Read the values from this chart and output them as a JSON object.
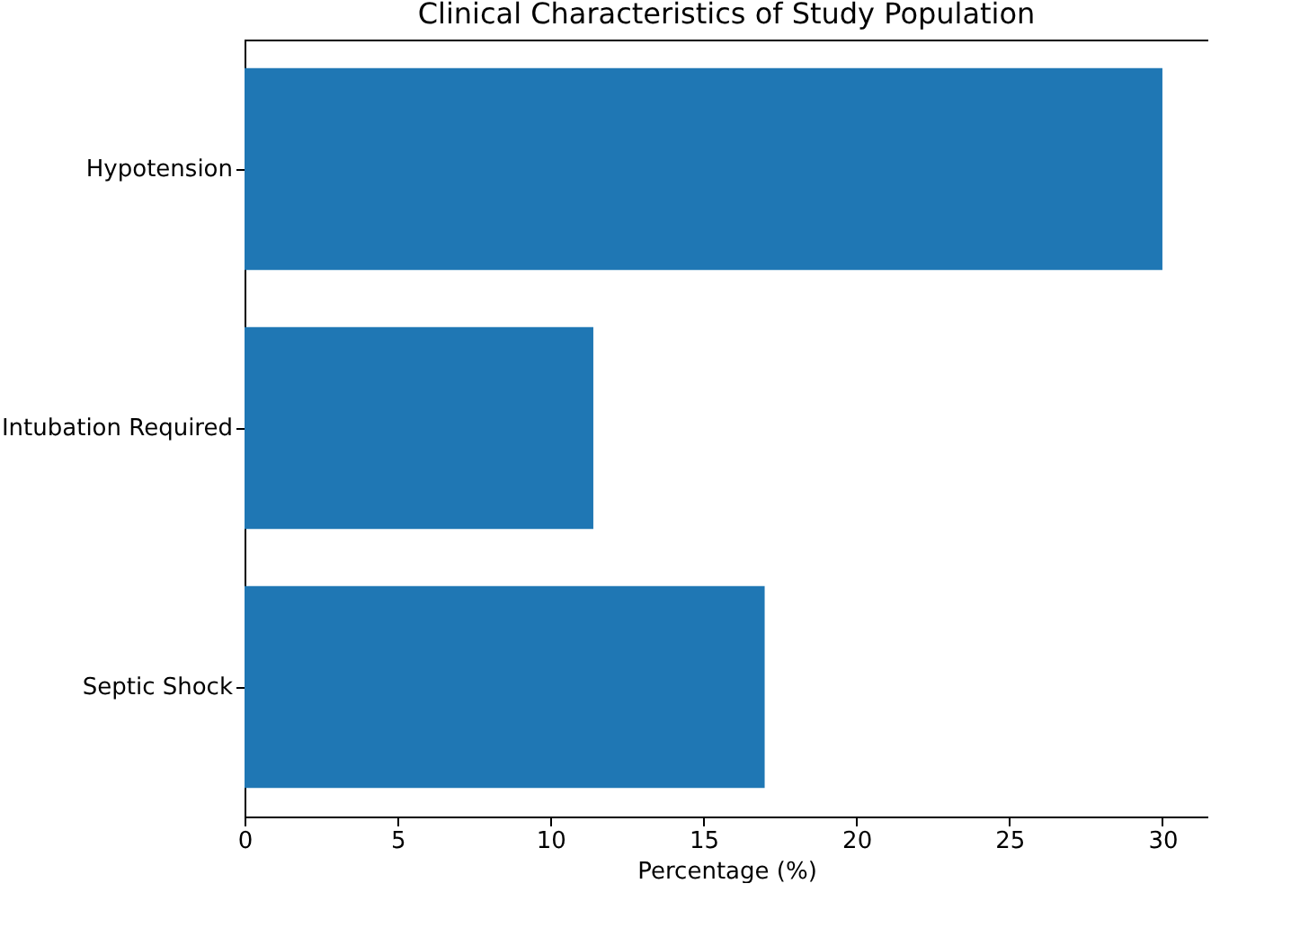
{
  "chart_data": {
    "type": "bar",
    "orientation": "horizontal",
    "title": "Clinical Characteristics of Study Population",
    "xlabel": "Percentage (%)",
    "categories": [
      "Hypotension",
      "Intubation Required",
      "Septic Shock"
    ],
    "values": [
      30,
      11.4,
      17
    ],
    "color": "#1f77b4",
    "xlim": [
      0,
      31.5
    ],
    "xticks": [
      0,
      5,
      10,
      15,
      20,
      25,
      30
    ],
    "grid": false
  }
}
